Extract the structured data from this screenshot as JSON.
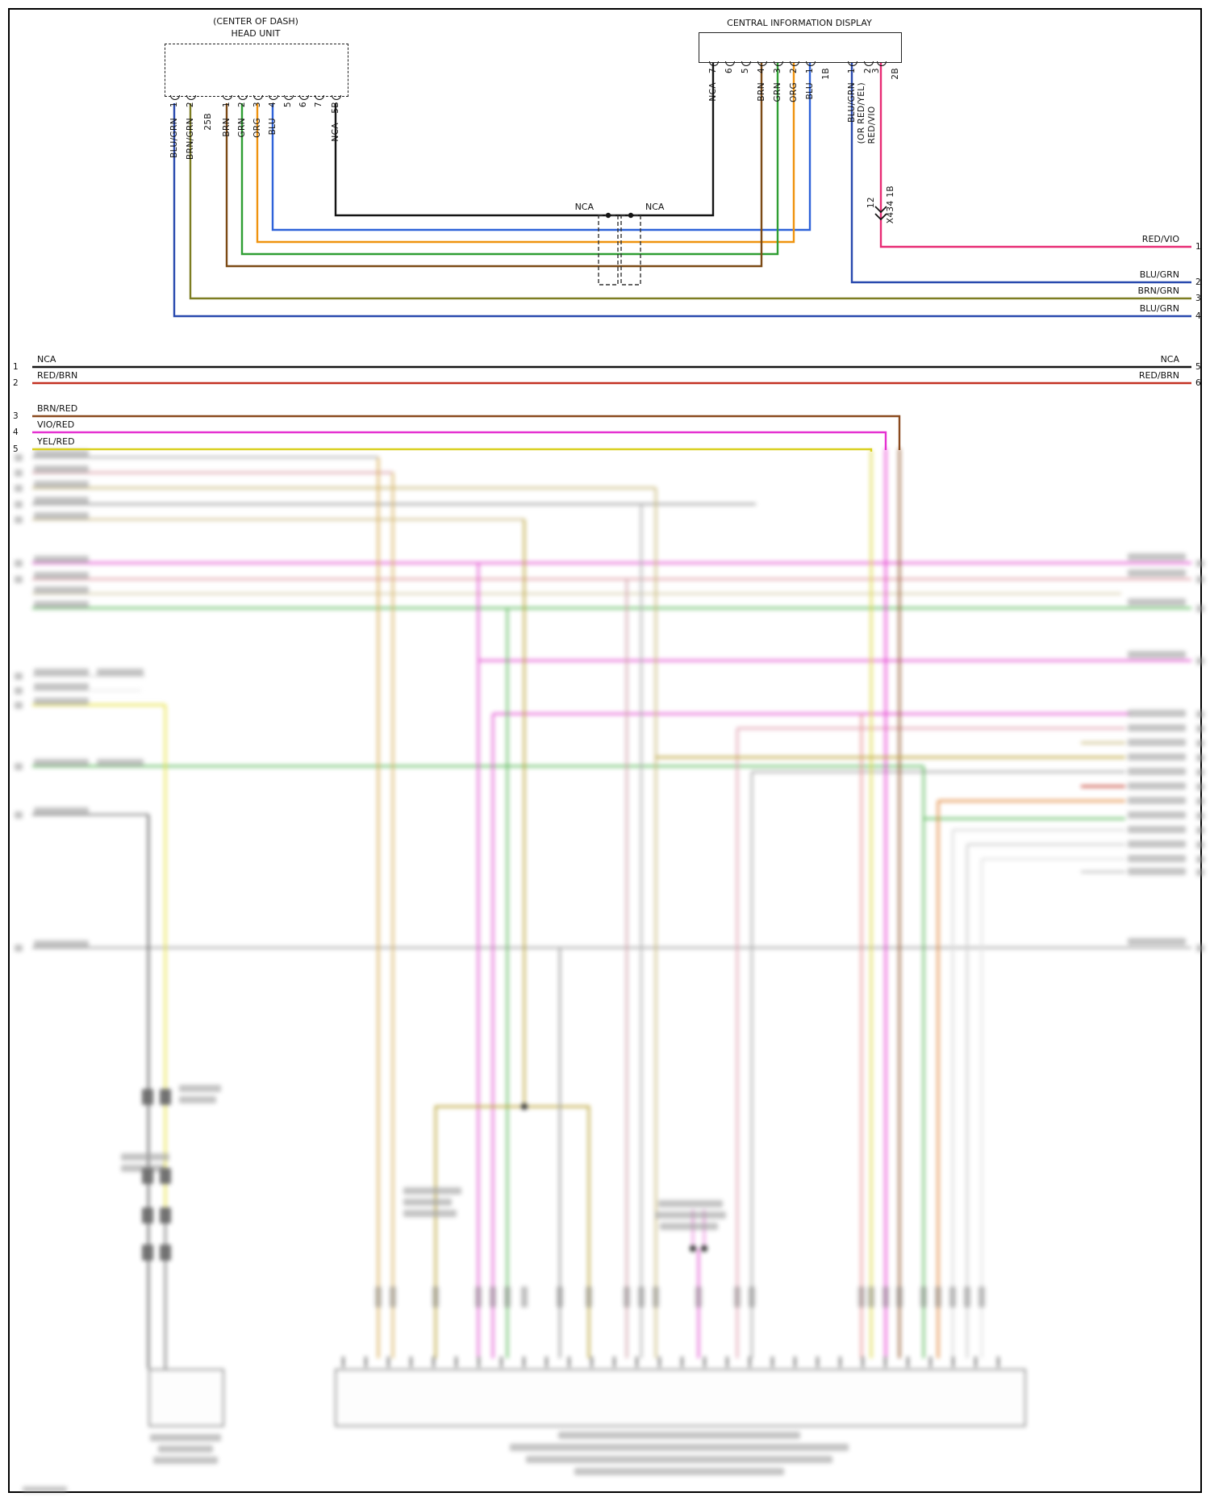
{
  "palette": {
    "nca_black": "#141414",
    "blu": "#2e62d9",
    "blu_grn": "#2849ae",
    "grn": "#2f9e33",
    "org": "#ef930f",
    "brn": "#7c4a15",
    "brn_grn": "#7d7d22",
    "red_vio": "#e82b74",
    "red_brn": "#c33122",
    "brn_red": "#8a4a1e",
    "vio_red": "#e531d1",
    "yel_red": "#d9d020"
  },
  "head_unit": {
    "title_line1": "(CENTER OF DASH)",
    "title_line2": "HEAD UNIT",
    "pins": [
      {
        "num": "1",
        "label": "BLU/GRN"
      },
      {
        "num": "2",
        "label": "BRN/GRN"
      },
      {
        "num": "25B",
        "label": ""
      },
      {
        "num": "1",
        "label": "BRN"
      },
      {
        "num": "2",
        "label": "GRN"
      },
      {
        "num": "3",
        "label": "ORG"
      },
      {
        "num": "4",
        "label": "BLU"
      },
      {
        "num": "5",
        "label": ""
      },
      {
        "num": "6",
        "label": ""
      },
      {
        "num": "7",
        "label": ""
      },
      {
        "num": "5B",
        "label": "NCA"
      }
    ]
  },
  "cid": {
    "title": "CENTRAL INFORMATION DISPLAY",
    "pins": [
      {
        "num": "7",
        "label": "NCA"
      },
      {
        "num": "6",
        "label": ""
      },
      {
        "num": "5",
        "label": ""
      },
      {
        "num": "4",
        "label": "BRN"
      },
      {
        "num": "3",
        "label": "GRN"
      },
      {
        "num": "2",
        "label": "ORG"
      },
      {
        "num": "1",
        "label": "BLU"
      },
      {
        "num": "1B",
        "label": ""
      },
      {
        "num": "1",
        "label": "BLU/GRN"
      },
      {
        "num": "2",
        "label": ""
      },
      {
        "num": "3",
        "label": "(OR RED/YEL)\nRED/VIO"
      },
      {
        "num": "2B",
        "label": ""
      }
    ]
  },
  "inline_connector": {
    "left_label": "NCA",
    "right_label": "NCA"
  },
  "splice": {
    "pin": "12",
    "label": "X434 1B"
  },
  "right_stubs": [
    {
      "num": "1",
      "label": "RED/VIO"
    },
    {
      "num": "2",
      "label": "BLU/GRN"
    },
    {
      "num": "3",
      "label": "BRN/GRN"
    },
    {
      "num": "4",
      "label": "BLU/GRN"
    }
  ],
  "bus_rows": [
    {
      "left_num": "1",
      "label": "NCA",
      "right_label": "NCA",
      "right_num": "5"
    },
    {
      "left_num": "2",
      "label": "RED/BRN",
      "right_label": "RED/BRN",
      "right_num": "6"
    },
    {
      "left_num": "3",
      "label": "BRN/RED",
      "right_label": "",
      "right_num": ""
    },
    {
      "left_num": "4",
      "label": "VIO/RED",
      "right_label": "",
      "right_num": ""
    },
    {
      "left_num": "5",
      "label": "YEL/RED",
      "right_label": "",
      "right_num": ""
    }
  ]
}
